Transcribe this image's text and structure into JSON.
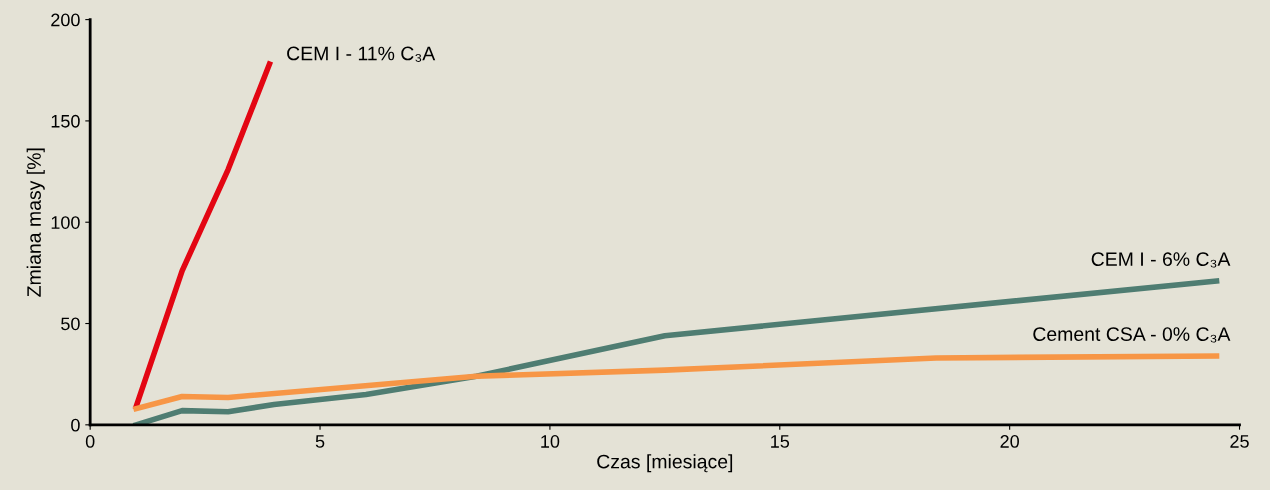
{
  "chart_data": {
    "type": "line",
    "xlabel": "Czas [miesiące]",
    "ylabel": "Zmiana masy [%]",
    "xlim": [
      0,
      25
    ],
    "xticks": [
      0,
      5,
      10,
      15,
      20,
      25
    ],
    "ylim": [
      0,
      200
    ],
    "yticks": [
      0,
      50,
      100,
      150,
      200
    ],
    "grid": false,
    "legend": false,
    "marker": "none",
    "line_style": "solid",
    "series": [
      {
        "name": "CEM I - 11% C₃A",
        "color": "#e30613",
        "x": [
          1,
          2,
          3,
          3.9
        ],
        "values": [
          9,
          76,
          126,
          178
        ]
      },
      {
        "name": "CEM I - 6% C₃A",
        "color": "#4f7d72",
        "x": [
          1,
          2,
          3,
          4,
          6,
          8.4,
          12.5,
          24.5
        ],
        "values": [
          0,
          7,
          6.5,
          10,
          15,
          24,
          44,
          71
        ]
      },
      {
        "name": "Cement CSA - 0% C₃A",
        "color": "#f79646",
        "x": [
          1,
          2,
          3,
          8.4,
          12.5,
          18.4,
          24.5
        ],
        "values": [
          8,
          14,
          13.5,
          24,
          27,
          33,
          34
        ]
      }
    ]
  }
}
